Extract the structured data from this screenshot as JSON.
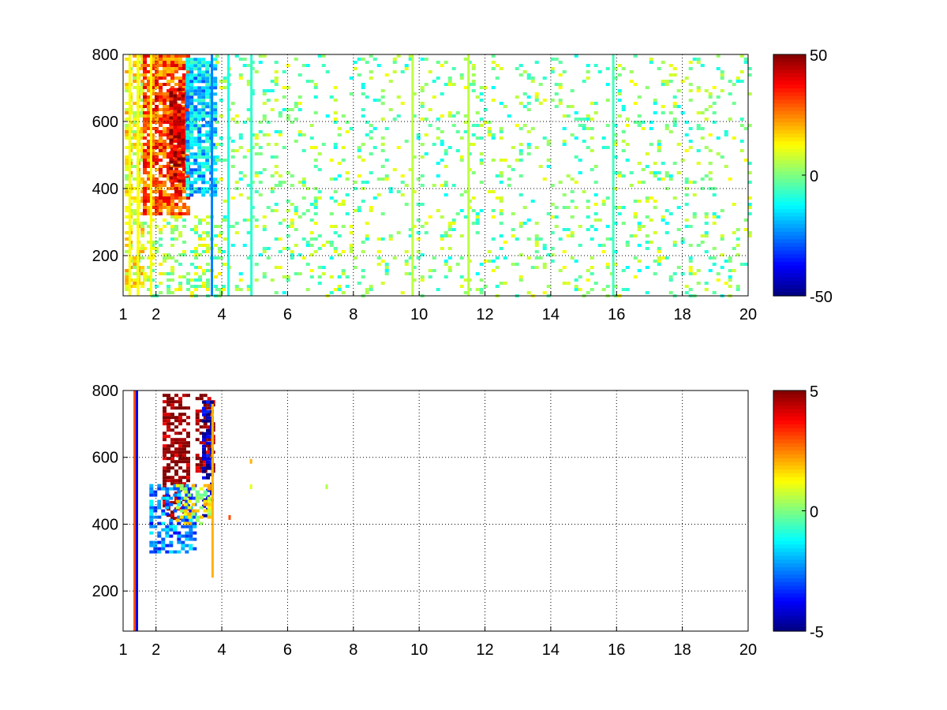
{
  "chart_data": [
    {
      "type": "heatmap",
      "title": "",
      "xlabel": "",
      "ylabel": "",
      "xlim": [
        1,
        20
      ],
      "ylim": [
        80,
        800
      ],
      "x_ticks": [
        1,
        2,
        4,
        6,
        8,
        10,
        12,
        14,
        16,
        18,
        20
      ],
      "y_ticks": [
        200,
        400,
        600,
        800
      ],
      "grid": true,
      "colormap": "jet",
      "colorbar": {
        "ticks": [
          50,
          0,
          -50
        ],
        "range": [
          -50,
          50
        ]
      },
      "regions": [
        {
          "x0": 1.05,
          "x1": 1.6,
          "y0": 80,
          "y1": 800,
          "value": 12,
          "density": 0.55
        },
        {
          "x0": 1.6,
          "x1": 3.0,
          "y0": 320,
          "y1": 800,
          "value": 30,
          "density": 0.8
        },
        {
          "x0": 2.4,
          "x1": 2.9,
          "y0": 420,
          "y1": 700,
          "value": 42,
          "density": 0.85
        },
        {
          "x0": 2.9,
          "x1": 3.8,
          "y0": 380,
          "y1": 790,
          "value": -18,
          "density": 0.8
        },
        {
          "x0": 1.6,
          "x1": 4.0,
          "y0": 80,
          "y1": 320,
          "value": 3,
          "density": 0.3
        },
        {
          "x0": 3.8,
          "x1": 20,
          "y0": 80,
          "y1": 800,
          "value": 0,
          "density": 0.12
        }
      ],
      "columns": [
        {
          "x": 1.2,
          "value": 12
        },
        {
          "x": 1.45,
          "value": 12
        },
        {
          "x": 1.85,
          "value": 12
        },
        {
          "x": 3.7,
          "value": -25
        },
        {
          "x": 4.2,
          "value": -10
        },
        {
          "x": 4.9,
          "value": -8
        },
        {
          "x": 9.8,
          "value": 6
        },
        {
          "x": 11.5,
          "value": 6
        },
        {
          "x": 15.9,
          "value": -6
        }
      ]
    },
    {
      "type": "heatmap",
      "title": "",
      "xlabel": "",
      "ylabel": "",
      "xlim": [
        1,
        20
      ],
      "ylim": [
        80,
        800
      ],
      "x_ticks": [
        1,
        2,
        4,
        6,
        8,
        10,
        12,
        14,
        16,
        18,
        20
      ],
      "y_ticks": [
        200,
        400,
        600,
        800
      ],
      "grid": true,
      "colormap": "jet",
      "colorbar": {
        "ticks": [
          5,
          0,
          -5
        ],
        "range": [
          -5,
          5
        ]
      },
      "regions": [
        {
          "x0": 2.2,
          "x1": 3.0,
          "y0": 420,
          "y1": 790,
          "value": 5,
          "density": 0.6
        },
        {
          "x0": 3.2,
          "x1": 3.7,
          "y0": 550,
          "y1": 790,
          "value": 5,
          "density": 0.55
        },
        {
          "x0": 1.8,
          "x1": 3.2,
          "y0": 320,
          "y1": 520,
          "value": -2.5,
          "density": 0.5
        },
        {
          "x0": 3.4,
          "x1": 3.75,
          "y0": 430,
          "y1": 770,
          "value": -4.5,
          "density": 0.55
        },
        {
          "x0": 2.6,
          "x1": 3.6,
          "y0": 400,
          "y1": 520,
          "value": 1,
          "density": 0.4
        }
      ],
      "columns": [
        {
          "x": 1.35,
          "value": 3,
          "y0": 80,
          "y1": 800
        },
        {
          "x": 1.42,
          "value": -4,
          "y0": 80,
          "y1": 800
        },
        {
          "x": 3.72,
          "value": 2,
          "y0": 240,
          "y1": 760
        }
      ],
      "points": [
        {
          "x": 4.25,
          "y": 420,
          "value": 3
        },
        {
          "x": 4.9,
          "y": 588,
          "value": 2
        },
        {
          "x": 4.9,
          "y": 512,
          "value": 1
        },
        {
          "x": 7.2,
          "y": 512,
          "value": 0.5
        }
      ]
    }
  ]
}
